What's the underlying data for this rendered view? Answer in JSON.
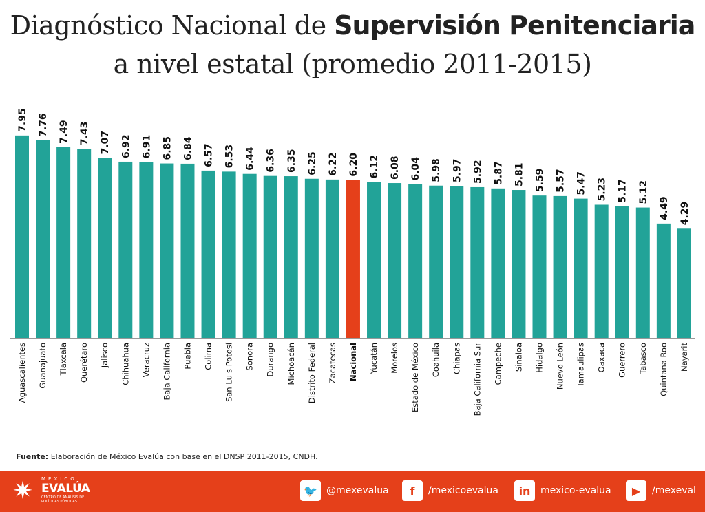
{
  "title": {
    "line1_regular": "Diagnóstico Nacional de ",
    "line1_bold": "Supervisión Penitenciaria",
    "line2": "a nivel estatal (promedio 2011-2015)"
  },
  "chart_data": {
    "type": "bar",
    "categories": [
      "Aguascalientes",
      "Guanajuato",
      "Tlaxcala",
      "Querétaro",
      "Jalisco",
      "Chihuahua",
      "Veracruz",
      "Baja California",
      "Puebla",
      "Colima",
      "San Luis Potosí",
      "Sonora",
      "Durango",
      "Michoacán",
      "Distrito Federal",
      "Zacatecas",
      "Nacional",
      "Yucatán",
      "Morelos",
      "Estado de México",
      "Coahuila",
      "Chiapas",
      "Baja California Sur",
      "Campeche",
      "Sinaloa",
      "Hidalgo",
      "Nuevo León",
      "Tamaulipas",
      "Oaxaca",
      "Guerrero",
      "Tabasco",
      "Quintana Roo",
      "Nayarit"
    ],
    "values": [
      7.95,
      7.76,
      7.49,
      7.43,
      7.07,
      6.92,
      6.91,
      6.85,
      6.84,
      6.57,
      6.53,
      6.44,
      6.36,
      6.35,
      6.25,
      6.22,
      6.2,
      6.12,
      6.08,
      6.04,
      5.98,
      5.97,
      5.92,
      5.87,
      5.81,
      5.59,
      5.57,
      5.47,
      5.23,
      5.17,
      5.12,
      4.49,
      4.29
    ],
    "value_labels": [
      "7.95",
      "7.76",
      "7.49",
      "7.43",
      "7.07",
      "6.92",
      "6.91",
      "6.85",
      "6.84",
      "6.57",
      "6.53",
      "6.44",
      "6.36",
      "6.35",
      "6.25",
      "6.22",
      "6.20",
      "6.12",
      "6.08",
      "6.04",
      "5.98",
      "5.97",
      "5.92",
      "5.87",
      "5.81",
      "5.59",
      "5.57",
      "5.47",
      "5.23",
      "5.17",
      "5.12",
      "4.49",
      "4.29"
    ],
    "highlight": "Nacional",
    "ylim": [
      0,
      8
    ],
    "grid": false,
    "colors": {
      "bar": "#22a398",
      "highlight": "#e5401a"
    }
  },
  "source": {
    "label": "Fuente:",
    "text": " Elaboración de México Evalúa con base en el DNSP 2011-2015, CNDH."
  },
  "footer": {
    "logo": {
      "top": "MÉXICO",
      "main": "EVALÚA",
      "sub": "CENTRO DE ANÁLISIS DE POLÍTICAS PÚBLICAS"
    },
    "social": [
      {
        "icon": "twitter-icon",
        "glyph": "🐦",
        "label": "@mexevalua"
      },
      {
        "icon": "facebook-icon",
        "glyph": "f",
        "label": "/mexicoevalua"
      },
      {
        "icon": "linkedin-icon",
        "glyph": "in",
        "label": "mexico-evalua"
      },
      {
        "icon": "youtube-icon",
        "glyph": "▶",
        "label": "/mexeval"
      }
    ]
  }
}
